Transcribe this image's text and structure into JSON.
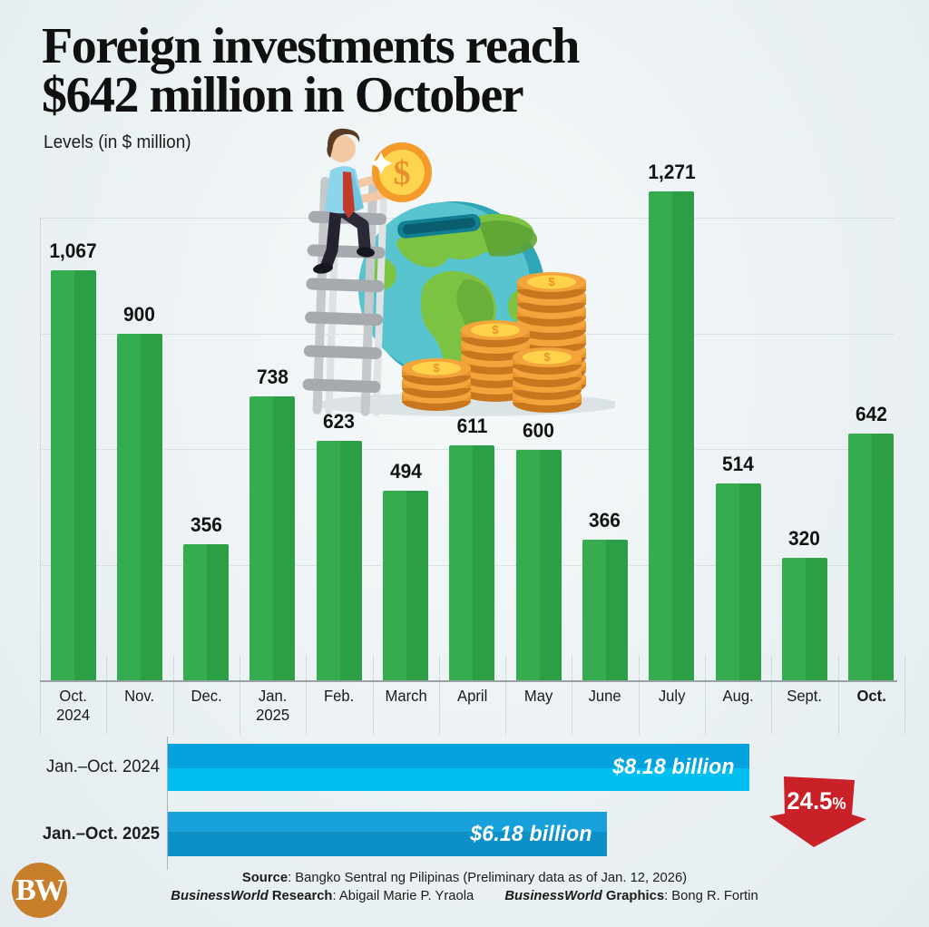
{
  "title": {
    "line1": "Foreign investments reach",
    "line2": "$642 million in October"
  },
  "subtitle": "Levels (in $ million)",
  "chart_data": [
    {
      "type": "bar",
      "title": "Foreign investments reach $642 million in October",
      "ylabel": "Levels (in $ million)",
      "xlabel": "",
      "categories": [
        "Oct. 2024",
        "Nov.",
        "Dec.",
        "Jan. 2025",
        "Feb.",
        "March",
        "April",
        "May",
        "June",
        "July",
        "Aug.",
        "Sept.",
        "Oct."
      ],
      "values": [
        1067,
        900,
        356,
        738,
        623,
        494,
        611,
        600,
        366,
        1271,
        514,
        320,
        642
      ],
      "value_labels": [
        "1,067",
        "900",
        "356",
        "738",
        "623",
        "494",
        "611",
        "600",
        "366",
        "1,271",
        "514",
        "320",
        "642"
      ],
      "ylim": [
        0,
        1350
      ],
      "gridline_values": [
        300,
        600,
        900,
        1200
      ],
      "grid": "dotted horizontal, no y tick labels",
      "legend": "none",
      "bar_color_main": "#36ac50",
      "bar_color_shade": "#2c9e46"
    },
    {
      "type": "bar",
      "orientation": "horizontal",
      "categories": [
        "Jan.–Oct. 2024",
        "Jan.–Oct. 2025"
      ],
      "values": [
        8.18,
        6.18
      ],
      "value_labels": [
        "$8.18 billion",
        "$6.18 billion"
      ],
      "unit": "$ billion",
      "xlim": [
        0,
        8.18
      ],
      "annotation": "24.5% decline",
      "bar_colors": [
        "#04a3de",
        "#0c90c6"
      ]
    }
  ],
  "category_labels": [
    {
      "line1": "Oct.",
      "line2": "2024",
      "bold": false
    },
    {
      "line1": "Nov.",
      "line2": "",
      "bold": false
    },
    {
      "line1": "Dec.",
      "line2": "",
      "bold": false
    },
    {
      "line1": "Jan.",
      "line2": "2025",
      "bold": false
    },
    {
      "line1": "Feb.",
      "line2": "",
      "bold": false
    },
    {
      "line1": "March",
      "line2": "",
      "bold": false
    },
    {
      "line1": "April",
      "line2": "",
      "bold": false
    },
    {
      "line1": "May",
      "line2": "",
      "bold": false
    },
    {
      "line1": "June",
      "line2": "",
      "bold": false
    },
    {
      "line1": "July",
      "line2": "",
      "bold": false
    },
    {
      "line1": "Aug.",
      "line2": "",
      "bold": false
    },
    {
      "line1": "Sept.",
      "line2": "",
      "bold": false
    },
    {
      "line1": "Oct.",
      "line2": "",
      "bold": true
    }
  ],
  "comparison": {
    "rows": [
      {
        "label": "Jan.–Oct. 2024",
        "value": 8.18,
        "value_label": "$8.18 billion",
        "bold": false,
        "class": "b2024"
      },
      {
        "label": "Jan.–Oct. 2025",
        "value": 6.18,
        "value_label": "$6.18 billion",
        "bold": true,
        "class": "b2025"
      }
    ],
    "change": {
      "value": "24.5",
      "suffix": "%",
      "direction": "down",
      "arrow_color": "#c92127"
    }
  },
  "illustration": {
    "description": "Businessman climbing a ladder to drop a dollar coin into a globe piggy-bank beside stacks of gold coins",
    "icons": [
      "ladder-icon",
      "businessman-icon",
      "dollar-coin-icon",
      "globe-piggy-bank-icon",
      "coin-stack-icon"
    ]
  },
  "footer": {
    "source_label": "Source",
    "source_text": ": Bangko Sentral ng Pilipinas (Preliminary data as of Jan. 12, 2026)",
    "research_brand": "BusinessWorld",
    "research_label": " Research",
    "research_text": ": Abigail Marie P. Yraola",
    "graphics_brand": "BusinessWorld",
    "graphics_label": " Graphics",
    "graphics_text": ": Bong R. Fortin"
  },
  "logo": {
    "text": "BW",
    "color": "#c77f2b"
  },
  "colors": {
    "background": "#ecf2f4",
    "bar_green": "#36ac50",
    "bar_green_shade": "#2c9e46",
    "blue_2024": "#04a3de",
    "blue_2024_light": "#00bff2",
    "blue_2025": "#0c90c6",
    "arrow_red": "#c92127",
    "logo_orange": "#c77f2b"
  }
}
